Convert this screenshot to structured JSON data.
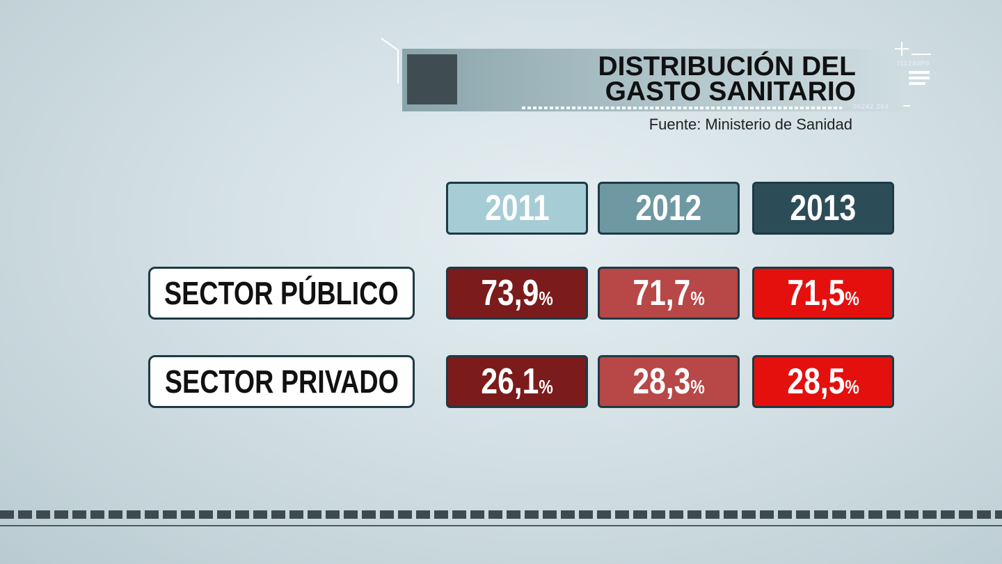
{
  "header": {
    "title": [
      "DISTRIBUCIÓN DEL",
      "GASTO SANITARIO"
    ],
    "source": "Fuente: Ministerio de Sanidad",
    "codes": [
      "I11240P0",
      "00242.263"
    ]
  },
  "table": {
    "columns": [
      "2011",
      "2012",
      "2013"
    ],
    "rows": [
      {
        "label": "SECTOR PÚBLICO",
        "cells": [
          {
            "value": "73,9",
            "unit": "%"
          },
          {
            "value": "71,7",
            "unit": "%"
          },
          {
            "value": "71,5",
            "unit": "%"
          }
        ]
      },
      {
        "label": "SECTOR PRIVADO",
        "cells": [
          {
            "value": "26,1",
            "unit": "%"
          },
          {
            "value": "28,3",
            "unit": "%"
          },
          {
            "value": "28,5",
            "unit": "%"
          }
        ]
      }
    ]
  }
}
